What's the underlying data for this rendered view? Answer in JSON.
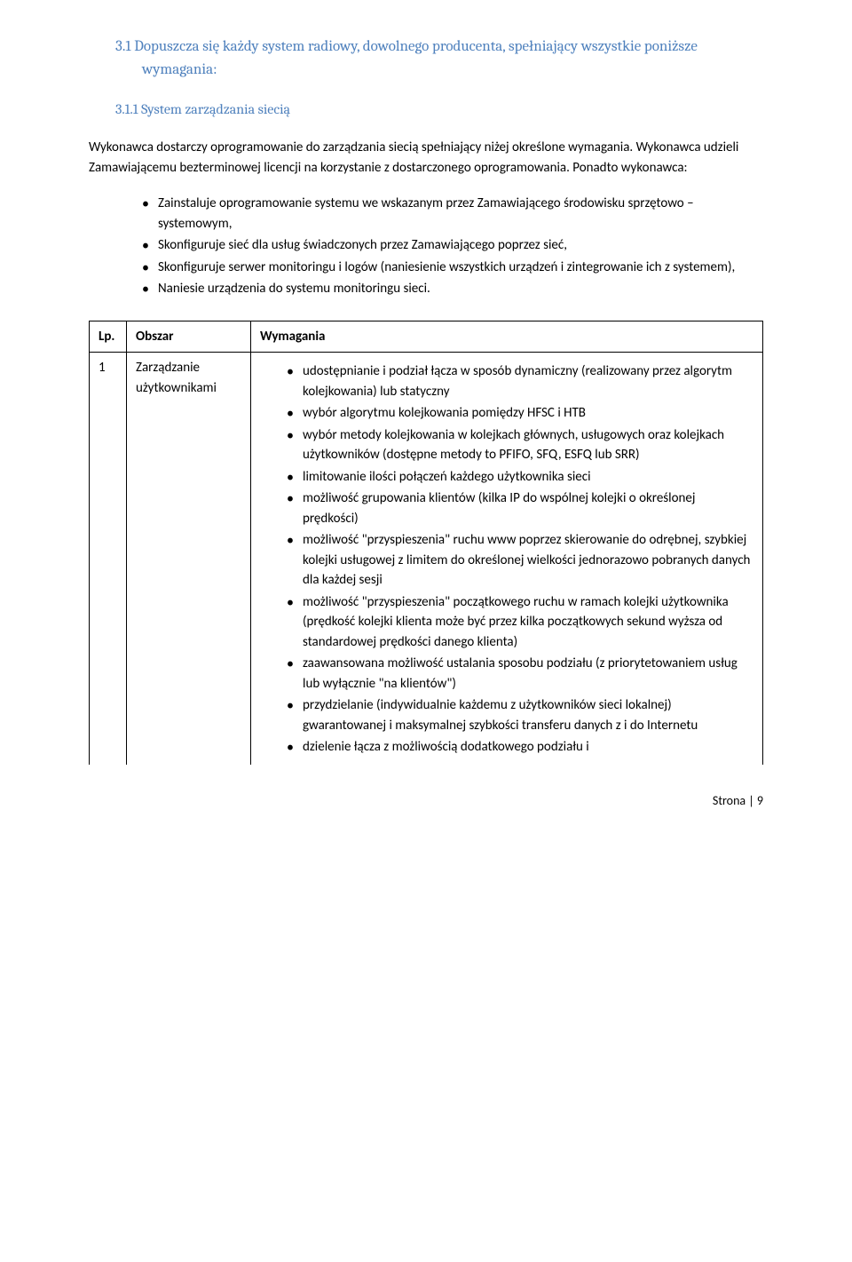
{
  "heading_3_1": "3.1 Dopuszcza się każdy system radiowy, dowolnego producenta, spełniający wszystkie poniższe wymagania:",
  "heading_3_1_1": "3.1.1 System zarządzania siecią",
  "para1": "Wykonawca dostarczy oprogramowanie do zarządzania siecią spełniający niżej określone wymagania. Wykonawca udzieli Zamawiającemu bezterminowej licencji na korzystanie z dostarczonego oprogramowania. Ponadto wykonawca:",
  "bullets": {
    "b1": "Zainstaluje oprogramowanie systemu we wskazanym przez Zamawiającego środowisku sprzętowo – systemowym,",
    "b2": "Skonfiguruje sieć dla usług świadczonych przez Zamawiającego poprzez sieć,",
    "b3": "Skonfiguruje serwer monitoringu i logów (naniesienie wszystkich urządzeń i zintegrowanie ich z systemem),",
    "b4": "Naniesie urządzenia do systemu monitoringu sieci."
  },
  "table": {
    "header": {
      "c1": "Lp.",
      "c2": "Obszar",
      "c3": "Wymagania"
    },
    "row1": {
      "num": "1",
      "area": "Zarządzanie użytkownikami",
      "items": {
        "i1": "udostępnianie i podział łącza w sposób dynamiczny (realizowany przez algorytm kolejkowania) lub statyczny",
        "i2": "wybór algorytmu kolejkowania pomiędzy HFSC i HTB",
        "i3": "wybór metody kolejkowania w kolejkach głównych, usługowych oraz kolejkach użytkowników (dostępne metody to PFIFO, SFQ, ESFQ lub SRR)",
        "i4": " limitowanie ilości połączeń każdego użytkownika sieci",
        "i5": "możliwość grupowania klientów (kilka IP do wspólnej kolejki o określonej prędkości)",
        "i6": "możliwość \"przyspieszenia\" ruchu www poprzez skierowanie do odrębnej, szybkiej kolejki usługowej z limitem do określonej wielkości jednorazowo pobranych danych dla każdej sesji",
        "i7": "możliwość \"przyspieszenia\" początkowego ruchu w ramach kolejki użytkownika (prędkość kolejki klienta może być przez kilka początkowych sekund wyższa od standardowej prędkości danego klienta)",
        "i8": "zaawansowana możliwość ustalania sposobu podziału (z priorytetowaniem usług lub wyłącznie \"na klientów\")",
        "i9": "przydzielanie (indywidualnie każdemu z użytkowników sieci lokalnej) gwarantowanej i maksymalnej szybkości transferu danych z i do Internetu",
        "i10": "dzielenie łącza z możliwością dodatkowego podziału i"
      }
    }
  },
  "footer": "Strona | 9"
}
